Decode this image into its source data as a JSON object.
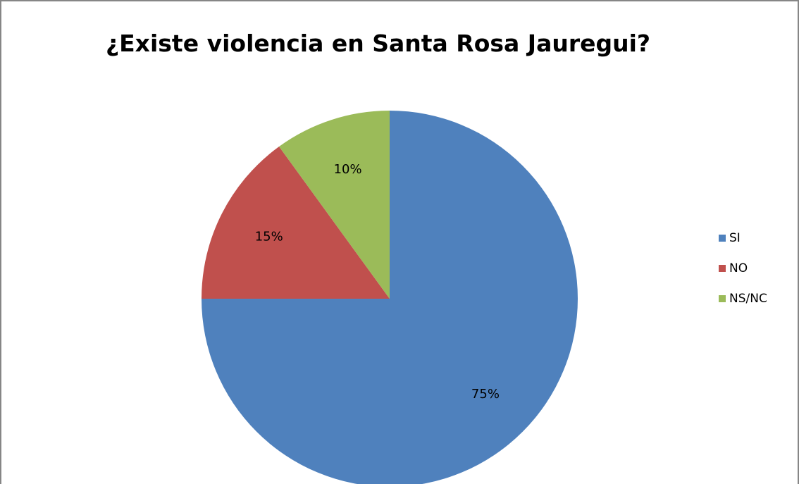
{
  "chart_data": {
    "type": "pie",
    "title": "¿Existe violencia en Santa Rosa Jauregui?",
    "categories": [
      "SI",
      "NO",
      "NS/NC"
    ],
    "values": [
      75,
      15,
      10
    ],
    "labels": [
      "75%",
      "15%",
      "10%"
    ],
    "colors": [
      "#4F81BD",
      "#C0504D",
      "#9BBB59"
    ],
    "legend_position": "right"
  }
}
